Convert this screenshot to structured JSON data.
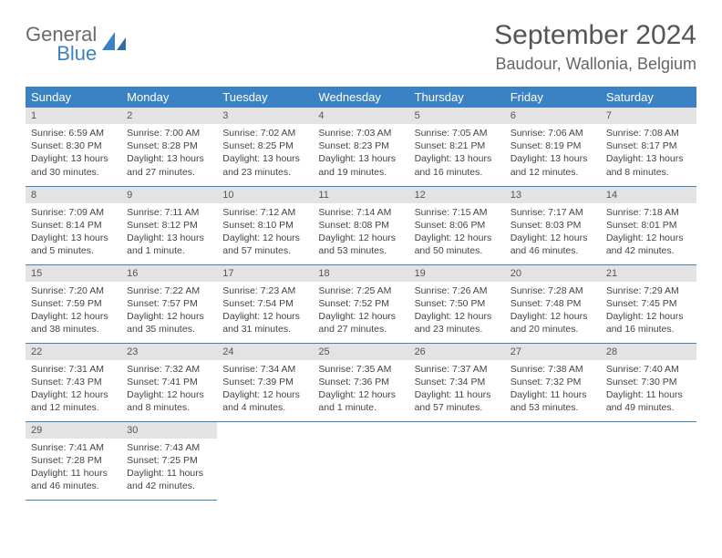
{
  "logo": {
    "line1": "General",
    "line2": "Blue"
  },
  "header": {
    "title": "September 2024",
    "location": "Baudour, Wallonia, Belgium"
  },
  "colors": {
    "header_bg": "#3b82c4",
    "header_text": "#ffffff",
    "daynum_bg": "#e3e3e3",
    "cell_border": "#3b82c4",
    "logo_gray": "#6a6a6a",
    "logo_blue": "#3b82c4"
  },
  "columns": [
    "Sunday",
    "Monday",
    "Tuesday",
    "Wednesday",
    "Thursday",
    "Friday",
    "Saturday"
  ],
  "weeks": [
    [
      {
        "n": "1",
        "sunrise": "Sunrise: 6:59 AM",
        "sunset": "Sunset: 8:30 PM",
        "day": "Daylight: 13 hours and 30 minutes."
      },
      {
        "n": "2",
        "sunrise": "Sunrise: 7:00 AM",
        "sunset": "Sunset: 8:28 PM",
        "day": "Daylight: 13 hours and 27 minutes."
      },
      {
        "n": "3",
        "sunrise": "Sunrise: 7:02 AM",
        "sunset": "Sunset: 8:25 PM",
        "day": "Daylight: 13 hours and 23 minutes."
      },
      {
        "n": "4",
        "sunrise": "Sunrise: 7:03 AM",
        "sunset": "Sunset: 8:23 PM",
        "day": "Daylight: 13 hours and 19 minutes."
      },
      {
        "n": "5",
        "sunrise": "Sunrise: 7:05 AM",
        "sunset": "Sunset: 8:21 PM",
        "day": "Daylight: 13 hours and 16 minutes."
      },
      {
        "n": "6",
        "sunrise": "Sunrise: 7:06 AM",
        "sunset": "Sunset: 8:19 PM",
        "day": "Daylight: 13 hours and 12 minutes."
      },
      {
        "n": "7",
        "sunrise": "Sunrise: 7:08 AM",
        "sunset": "Sunset: 8:17 PM",
        "day": "Daylight: 13 hours and 8 minutes."
      }
    ],
    [
      {
        "n": "8",
        "sunrise": "Sunrise: 7:09 AM",
        "sunset": "Sunset: 8:14 PM",
        "day": "Daylight: 13 hours and 5 minutes."
      },
      {
        "n": "9",
        "sunrise": "Sunrise: 7:11 AM",
        "sunset": "Sunset: 8:12 PM",
        "day": "Daylight: 13 hours and 1 minute."
      },
      {
        "n": "10",
        "sunrise": "Sunrise: 7:12 AM",
        "sunset": "Sunset: 8:10 PM",
        "day": "Daylight: 12 hours and 57 minutes."
      },
      {
        "n": "11",
        "sunrise": "Sunrise: 7:14 AM",
        "sunset": "Sunset: 8:08 PM",
        "day": "Daylight: 12 hours and 53 minutes."
      },
      {
        "n": "12",
        "sunrise": "Sunrise: 7:15 AM",
        "sunset": "Sunset: 8:06 PM",
        "day": "Daylight: 12 hours and 50 minutes."
      },
      {
        "n": "13",
        "sunrise": "Sunrise: 7:17 AM",
        "sunset": "Sunset: 8:03 PM",
        "day": "Daylight: 12 hours and 46 minutes."
      },
      {
        "n": "14",
        "sunrise": "Sunrise: 7:18 AM",
        "sunset": "Sunset: 8:01 PM",
        "day": "Daylight: 12 hours and 42 minutes."
      }
    ],
    [
      {
        "n": "15",
        "sunrise": "Sunrise: 7:20 AM",
        "sunset": "Sunset: 7:59 PM",
        "day": "Daylight: 12 hours and 38 minutes."
      },
      {
        "n": "16",
        "sunrise": "Sunrise: 7:22 AM",
        "sunset": "Sunset: 7:57 PM",
        "day": "Daylight: 12 hours and 35 minutes."
      },
      {
        "n": "17",
        "sunrise": "Sunrise: 7:23 AM",
        "sunset": "Sunset: 7:54 PM",
        "day": "Daylight: 12 hours and 31 minutes."
      },
      {
        "n": "18",
        "sunrise": "Sunrise: 7:25 AM",
        "sunset": "Sunset: 7:52 PM",
        "day": "Daylight: 12 hours and 27 minutes."
      },
      {
        "n": "19",
        "sunrise": "Sunrise: 7:26 AM",
        "sunset": "Sunset: 7:50 PM",
        "day": "Daylight: 12 hours and 23 minutes."
      },
      {
        "n": "20",
        "sunrise": "Sunrise: 7:28 AM",
        "sunset": "Sunset: 7:48 PM",
        "day": "Daylight: 12 hours and 20 minutes."
      },
      {
        "n": "21",
        "sunrise": "Sunrise: 7:29 AM",
        "sunset": "Sunset: 7:45 PM",
        "day": "Daylight: 12 hours and 16 minutes."
      }
    ],
    [
      {
        "n": "22",
        "sunrise": "Sunrise: 7:31 AM",
        "sunset": "Sunset: 7:43 PM",
        "day": "Daylight: 12 hours and 12 minutes."
      },
      {
        "n": "23",
        "sunrise": "Sunrise: 7:32 AM",
        "sunset": "Sunset: 7:41 PM",
        "day": "Daylight: 12 hours and 8 minutes."
      },
      {
        "n": "24",
        "sunrise": "Sunrise: 7:34 AM",
        "sunset": "Sunset: 7:39 PM",
        "day": "Daylight: 12 hours and 4 minutes."
      },
      {
        "n": "25",
        "sunrise": "Sunrise: 7:35 AM",
        "sunset": "Sunset: 7:36 PM",
        "day": "Daylight: 12 hours and 1 minute."
      },
      {
        "n": "26",
        "sunrise": "Sunrise: 7:37 AM",
        "sunset": "Sunset: 7:34 PM",
        "day": "Daylight: 11 hours and 57 minutes."
      },
      {
        "n": "27",
        "sunrise": "Sunrise: 7:38 AM",
        "sunset": "Sunset: 7:32 PM",
        "day": "Daylight: 11 hours and 53 minutes."
      },
      {
        "n": "28",
        "sunrise": "Sunrise: 7:40 AM",
        "sunset": "Sunset: 7:30 PM",
        "day": "Daylight: 11 hours and 49 minutes."
      }
    ],
    [
      {
        "n": "29",
        "sunrise": "Sunrise: 7:41 AM",
        "sunset": "Sunset: 7:28 PM",
        "day": "Daylight: 11 hours and 46 minutes."
      },
      {
        "n": "30",
        "sunrise": "Sunrise: 7:43 AM",
        "sunset": "Sunset: 7:25 PM",
        "day": "Daylight: 11 hours and 42 minutes."
      },
      null,
      null,
      null,
      null,
      null
    ]
  ]
}
